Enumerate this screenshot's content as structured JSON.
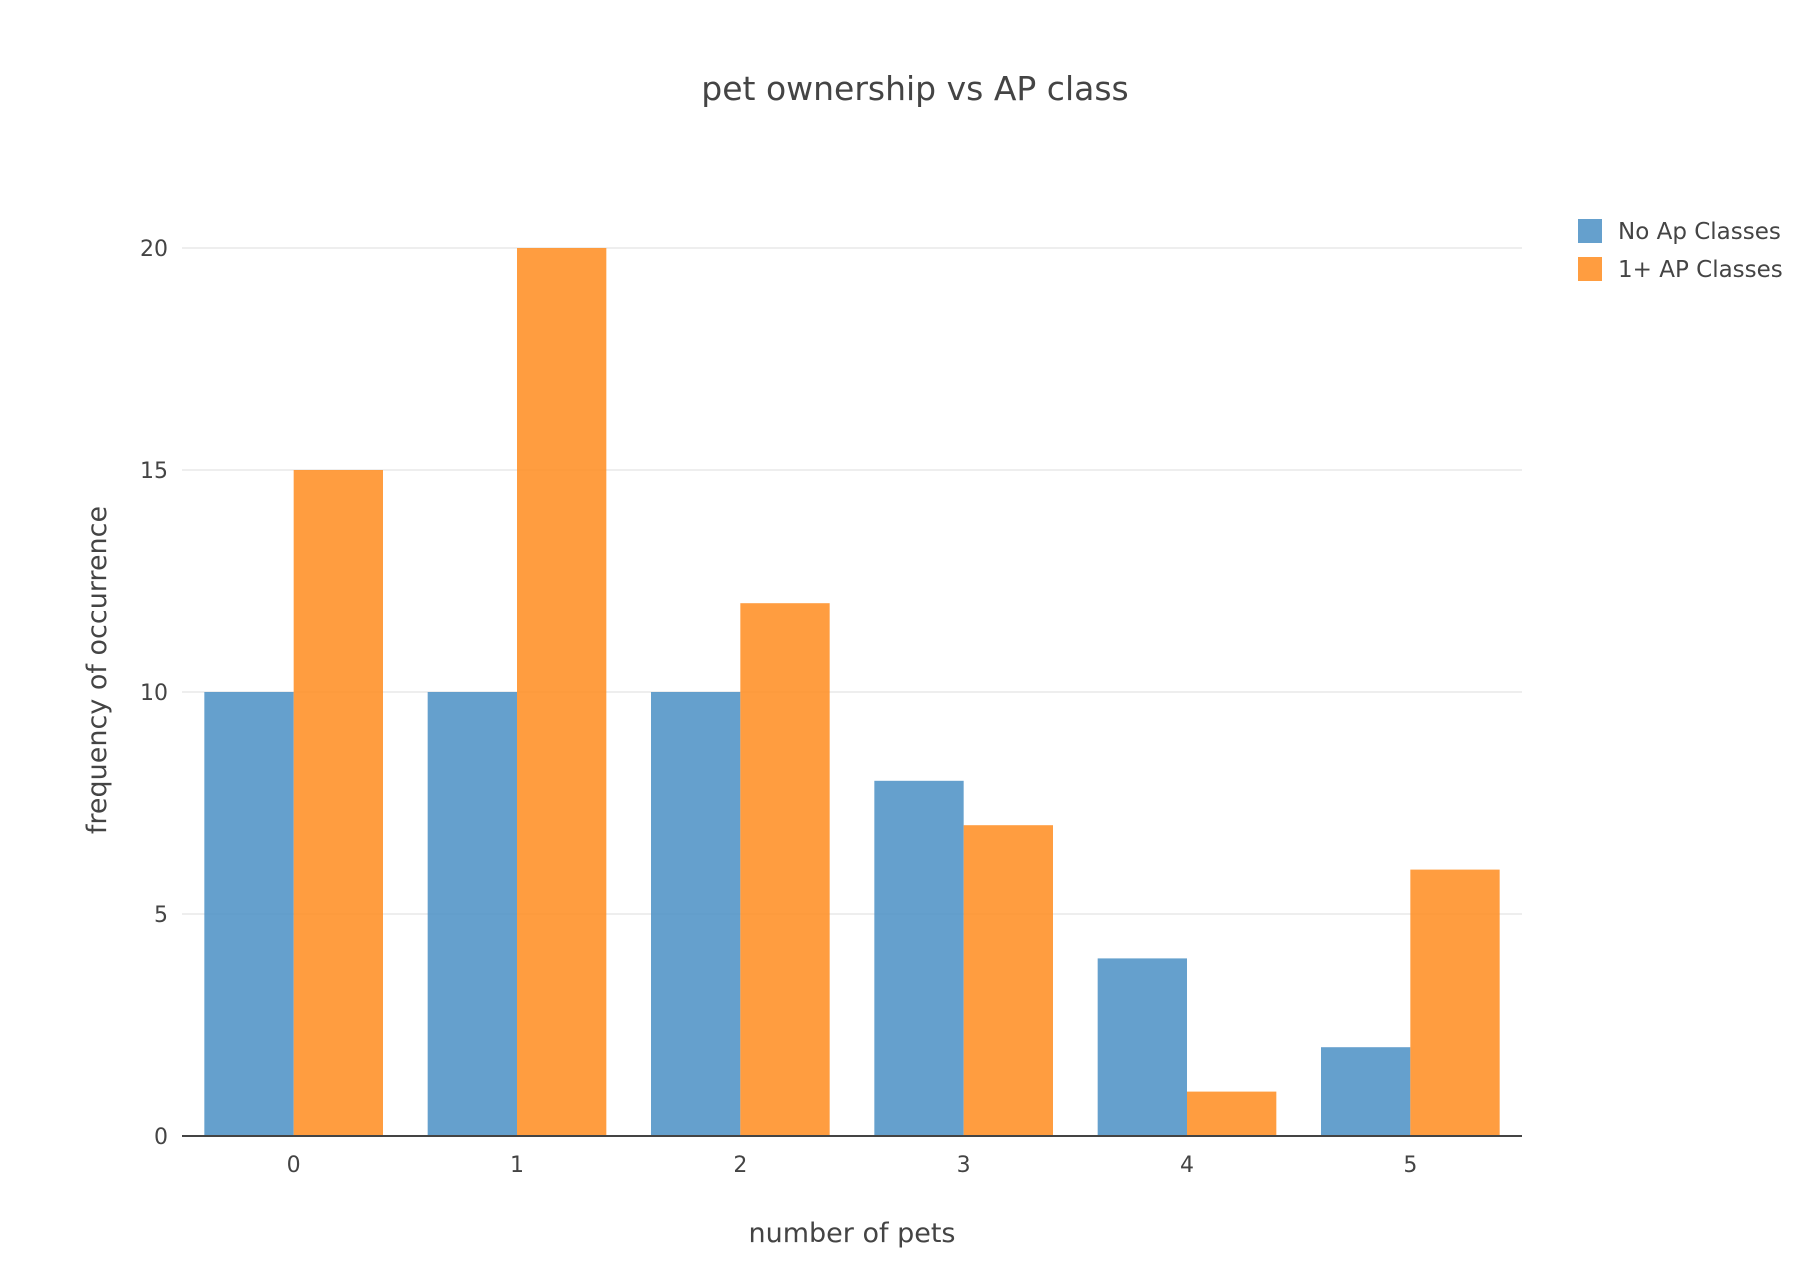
{
  "chart_data": {
    "type": "bar",
    "title": "pet ownership vs AP class",
    "xlabel": "number of pets",
    "ylabel": "frequency of occurrence",
    "categories": [
      "0",
      "1",
      "2",
      "3",
      "4",
      "5"
    ],
    "series": [
      {
        "name": "No Ap Classes",
        "values": [
          10,
          10,
          10,
          8,
          4,
          2
        ],
        "color": "#4a8fc4"
      },
      {
        "name": "1+ AP Classes",
        "values": [
          15,
          20,
          12,
          7,
          1,
          6
        ],
        "color": "#ff8c1f"
      }
    ],
    "ylim": [
      0,
      20
    ],
    "yticks": [
      0,
      5,
      10,
      15,
      20
    ],
    "grid": "horizontal",
    "legend": "top-right"
  }
}
